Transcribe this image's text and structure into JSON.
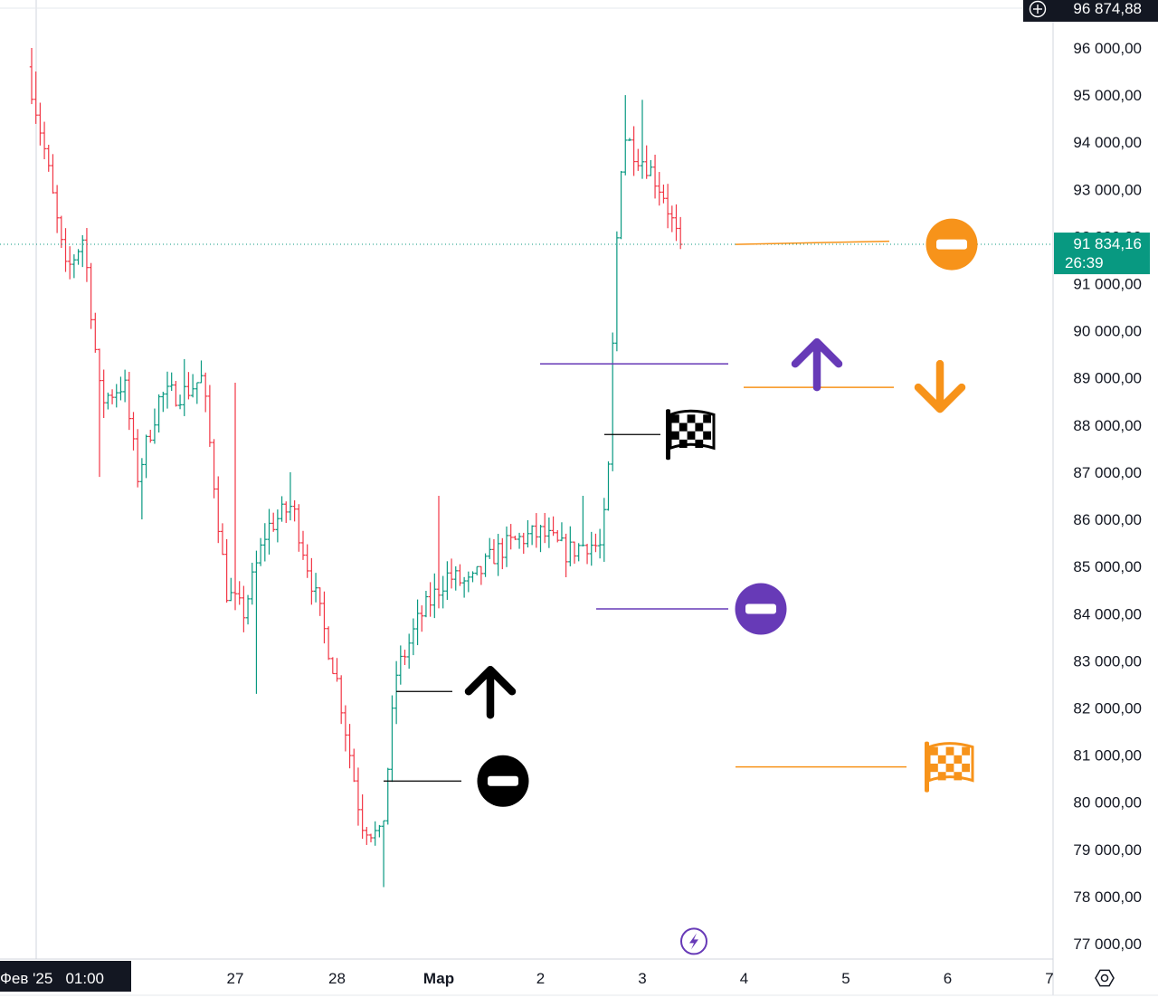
{
  "chart_data": {
    "type": "ohlc",
    "y_axis": {
      "ticks": [
        96000,
        95000,
        94000,
        93000,
        92000,
        91000,
        90000,
        89000,
        88000,
        87000,
        86000,
        85000,
        84000,
        83000,
        82000,
        81000,
        80000,
        79000,
        78000,
        77000
      ],
      "tick_labels": [
        "96 000,00",
        "95 000,00",
        "94 000,00",
        "93 000,00",
        "92 000,00",
        "91 000,00",
        "90 000,00",
        "89 000,00",
        "88 000,00",
        "87 000,00",
        "86 000,00",
        "85 000,00",
        "84 000,00",
        "83 000,00",
        "82 000,00",
        "81 000,00",
        "80 000,00",
        "79 000,00",
        "78 000,00",
        "77 000,00"
      ],
      "range": [
        76700,
        97200
      ]
    },
    "x_axis": {
      "labels": [
        {
          "day": 25.9,
          "text": "6",
          "bold": false
        },
        {
          "day": 27,
          "text": "27",
          "bold": false
        },
        {
          "day": 28,
          "text": "28",
          "bold": false
        },
        {
          "day": 29,
          "text": "Мар",
          "bold": true
        },
        {
          "day": 30,
          "text": "2",
          "bold": false
        },
        {
          "day": 31,
          "text": "3",
          "bold": false
        },
        {
          "day": 32,
          "text": "4",
          "bold": false
        },
        {
          "day": 33,
          "text": "5",
          "bold": false
        },
        {
          "day": 34,
          "text": "6",
          "bold": false
        },
        {
          "day": 35,
          "text": "7",
          "bold": false
        }
      ],
      "range": [
        25.0,
        35.0
      ]
    },
    "crosshair_date": "Фев '25   01:00",
    "top_price_label": "96 874,88",
    "current_price": {
      "value": 91834.16,
      "label": "91 834,16",
      "countdown": "26:39",
      "color": "#089981"
    },
    "colors": {
      "up": "#089981",
      "down": "#f23645",
      "orange": "#f7931a",
      "purple": "#673ab7",
      "black": "#000000"
    },
    "anchors": [
      {
        "day": 25.0,
        "price": 95600
      },
      {
        "day": 25.18,
        "price": 93700
      },
      {
        "day": 25.38,
        "price": 91200
      },
      {
        "day": 25.55,
        "price": 92000
      },
      {
        "day": 25.72,
        "price": 88500
      },
      {
        "day": 25.95,
        "price": 88900
      },
      {
        "day": 26.08,
        "price": 86900
      },
      {
        "day": 26.3,
        "price": 88600
      },
      {
        "day": 26.55,
        "price": 88700
      },
      {
        "day": 26.72,
        "price": 89000
      },
      {
        "day": 26.95,
        "price": 84500
      },
      {
        "day": 27.12,
        "price": 84000
      },
      {
        "day": 27.35,
        "price": 85800
      },
      {
        "day": 27.6,
        "price": 86300
      },
      {
        "day": 27.85,
        "price": 84200
      },
      {
        "day": 28.05,
        "price": 82500
      },
      {
        "day": 28.28,
        "price": 79600
      },
      {
        "day": 28.48,
        "price": 79200
      },
      {
        "day": 28.62,
        "price": 82700
      },
      {
        "day": 28.85,
        "price": 83900
      },
      {
        "day": 29.12,
        "price": 84800
      },
      {
        "day": 29.35,
        "price": 84600
      },
      {
        "day": 29.6,
        "price": 85300
      },
      {
        "day": 29.85,
        "price": 85600
      },
      {
        "day": 30.05,
        "price": 85700
      },
      {
        "day": 30.3,
        "price": 85300
      },
      {
        "day": 30.5,
        "price": 85500
      },
      {
        "day": 30.63,
        "price": 85400
      },
      {
        "day": 30.7,
        "price": 86500
      },
      {
        "day": 30.78,
        "price": 91500
      },
      {
        "day": 30.85,
        "price": 94200
      },
      {
        "day": 30.97,
        "price": 93800
      },
      {
        "day": 31.1,
        "price": 93500
      },
      {
        "day": 31.25,
        "price": 92900
      },
      {
        "day": 31.4,
        "price": 91834
      }
    ],
    "extremes": [
      {
        "day": 25.0,
        "high": 96000
      },
      {
        "day": 25.05,
        "high": 95500
      },
      {
        "day": 25.68,
        "low": 86900
      },
      {
        "day": 26.08,
        "low": 86000
      },
      {
        "day": 26.5,
        "high": 89400
      },
      {
        "day": 27.0,
        "high": 88900
      },
      {
        "day": 27.2,
        "low": 82300
      },
      {
        "day": 27.55,
        "high": 87000
      },
      {
        "day": 28.0,
        "low": 83200
      },
      {
        "day": 28.46,
        "low": 78200
      },
      {
        "day": 28.98,
        "high": 86500
      },
      {
        "day": 30.42,
        "high": 86500
      },
      {
        "day": 30.62,
        "low": 85100
      },
      {
        "day": 30.82,
        "high": 95000
      },
      {
        "day": 31.02,
        "high": 94900
      },
      {
        "day": 31.43,
        "low": 91200
      }
    ]
  },
  "annotations": {
    "lines": [
      {
        "x1": 813,
        "x2": 983,
        "price": 91834,
        "price2": 91900,
        "color": "orange"
      },
      {
        "x1": 597,
        "x2": 805,
        "price": 89300,
        "color": "purple"
      },
      {
        "x1": 822,
        "x2": 988,
        "price": 88800,
        "color": "orange"
      },
      {
        "x1": 668,
        "x2": 730,
        "price": 87800,
        "color": "black"
      },
      {
        "x1": 659,
        "x2": 805,
        "price": 84100,
        "color": "purple"
      },
      {
        "x1": 438,
        "x2": 500,
        "price": 82350,
        "color": "black"
      },
      {
        "x1": 424,
        "x2": 510,
        "price": 80450,
        "color": "black"
      },
      {
        "x1": 813,
        "x2": 1002,
        "price": 80750,
        "color": "orange"
      }
    ],
    "icons": [
      {
        "name": "stop-icon",
        "kind": "stop",
        "x": 1052,
        "price": 91834,
        "color": "orange"
      },
      {
        "name": "arrow-up-icon",
        "kind": "up",
        "x": 903,
        "price": 89300,
        "color": "purple"
      },
      {
        "name": "arrow-down-icon",
        "kind": "down",
        "x": 1039,
        "price": 88800,
        "color": "orange"
      },
      {
        "name": "checkered-flag-icon",
        "kind": "flag",
        "x": 762,
        "price": 87800,
        "color": "black"
      },
      {
        "name": "stop-icon",
        "kind": "stop",
        "x": 841,
        "price": 84100,
        "color": "purple"
      },
      {
        "name": "arrow-up-icon",
        "kind": "up",
        "x": 542,
        "price": 82350,
        "color": "black"
      },
      {
        "name": "stop-icon",
        "kind": "stop",
        "x": 556,
        "price": 80450,
        "color": "black"
      },
      {
        "name": "checkered-flag-icon",
        "kind": "flag",
        "x": 1048,
        "price": 80750,
        "color": "orange"
      },
      {
        "name": "lightning-icon",
        "kind": "bolt",
        "x": 767,
        "price": 77050,
        "color": "purple"
      }
    ]
  },
  "icon_names": [
    "plus-icon",
    "settings-icon"
  ]
}
